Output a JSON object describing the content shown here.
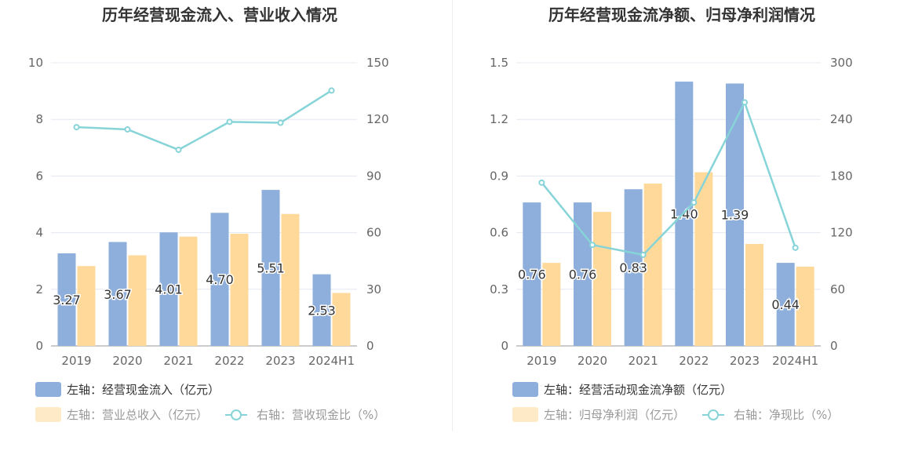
{
  "chart_data": [
    {
      "type": "bar",
      "title": "历年经营现金流入、营业收入情况",
      "categories": [
        "2019",
        "2020",
        "2021",
        "2022",
        "2023",
        "2024H1"
      ],
      "left_axis": {
        "ylim": [
          0,
          10
        ],
        "ticks": [
          "0",
          "2",
          "4",
          "6",
          "8",
          "10"
        ]
      },
      "right_axis": {
        "ylim": [
          0,
          150
        ],
        "ticks": [
          "0",
          "30",
          "60",
          "90",
          "120",
          "150"
        ]
      },
      "series": [
        {
          "name": "左轴：经营现金流入（亿元）",
          "type": "bar",
          "axis": "left",
          "color": "#8eaedb",
          "values": [
            3.27,
            3.67,
            4.01,
            4.7,
            5.51,
            2.53
          ],
          "labels": [
            "3.27",
            "3.67",
            "4.01",
            "4.70",
            "5.51",
            "2.53"
          ]
        },
        {
          "name": "左轴：营业总收入（亿元）",
          "type": "bar",
          "axis": "left",
          "color": "#ffd999",
          "values": [
            2.82,
            3.2,
            3.86,
            3.96,
            4.66,
            1.87
          ]
        },
        {
          "name": "右轴：营收现金比（%）",
          "type": "line",
          "axis": "right",
          "color": "#86d4d8",
          "values": [
            115.9,
            114.7,
            103.9,
            118.7,
            118.2,
            135.3
          ]
        }
      ],
      "grid": true,
      "legend_position": "bottom-left"
    },
    {
      "type": "bar",
      "title": "历年经营现金流净额、归母净利润情况",
      "categories": [
        "2019",
        "2020",
        "2021",
        "2022",
        "2023",
        "2024H1"
      ],
      "left_axis": {
        "ylim": [
          0,
          1.5
        ],
        "ticks": [
          "0",
          "0.3",
          "0.6",
          "0.9",
          "1.2",
          "1.5"
        ]
      },
      "right_axis": {
        "ylim": [
          0,
          300
        ],
        "ticks": [
          "0",
          "60",
          "120",
          "180",
          "240",
          "300"
        ]
      },
      "series": [
        {
          "name": "左轴：经营活动现金流净额（亿元）",
          "type": "bar",
          "axis": "left",
          "color": "#8eaedb",
          "values": [
            0.76,
            0.76,
            0.83,
            1.4,
            1.39,
            0.44
          ],
          "labels": [
            "0.76",
            "0.76",
            "0.83",
            "1.40",
            "1.39",
            "0.44"
          ]
        },
        {
          "name": "左轴：归母净利润（亿元）",
          "type": "bar",
          "axis": "left",
          "color": "#ffd999",
          "values": [
            0.44,
            0.71,
            0.86,
            0.92,
            0.54,
            0.42
          ]
        },
        {
          "name": "右轴：净现比（%）",
          "type": "line",
          "axis": "right",
          "color": "#86d4d8",
          "values": [
            173,
            107,
            96.5,
            152,
            258,
            104
          ]
        }
      ],
      "grid": true,
      "legend_position": "bottom-left"
    }
  ]
}
